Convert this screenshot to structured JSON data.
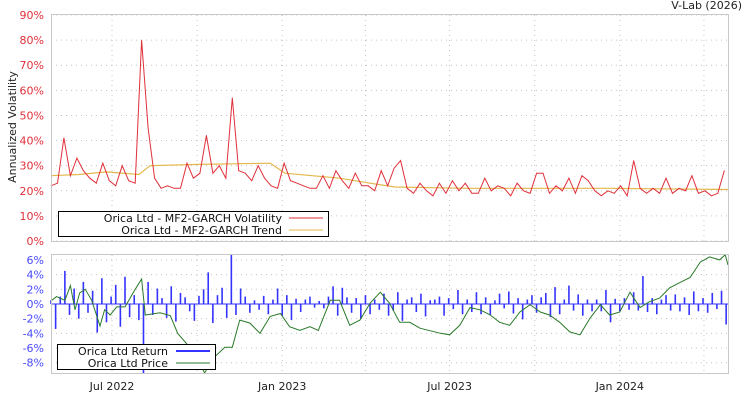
{
  "credit": "V-Lab (2026)",
  "chart_data": [
    {
      "type": "line",
      "ylabel": "Annualized Volatility",
      "ylim": [
        0,
        90
      ],
      "yticks": [
        "0%",
        "10%",
        "20%",
        "30%",
        "40%",
        "50%",
        "60%",
        "70%",
        "80%",
        "90%"
      ],
      "x_units": "days since 2022-04-26",
      "xlim": [
        0,
        732
      ],
      "grid": true,
      "legend_position": "bottom-left",
      "legend": [
        "Orica Ltd - MF2-GARCH Volatility",
        "Orica Ltd - MF2-GARCH Trend"
      ],
      "colors": {
        "volatility": "#e0303a",
        "trend": "#e3b84a"
      },
      "series": [
        {
          "name": "Orica Ltd - MF2-GARCH Volatility",
          "x_step": 7,
          "values": [
            22,
            23,
            41,
            26,
            33,
            28,
            25,
            23,
            31,
            24,
            22,
            30,
            24,
            23,
            80,
            45,
            25,
            21,
            22,
            21,
            21,
            31,
            25,
            27,
            42,
            27,
            30,
            25,
            57,
            28,
            27,
            24,
            30,
            25,
            22,
            21,
            31,
            24,
            23,
            22,
            21,
            21,
            26,
            21,
            28,
            24,
            21,
            27,
            22,
            22,
            20,
            28,
            22,
            29,
            32,
            21,
            19,
            23,
            20,
            18,
            23,
            19,
            24,
            20,
            23,
            19,
            19,
            25,
            20,
            22,
            21,
            18,
            23,
            20,
            19,
            27,
            27,
            19,
            22,
            20,
            25,
            19,
            26,
            24,
            20,
            18,
            20,
            19,
            22,
            18,
            32,
            21,
            19,
            21,
            19,
            25,
            19,
            21,
            20,
            26,
            19,
            20,
            18,
            19,
            28
          ]
        },
        {
          "name": "Orica Ltd - MF2-GARCH Trend",
          "points": [
            [
              0,
              26
            ],
            [
              30,
              26.5
            ],
            [
              60,
              27.5
            ],
            [
              95,
              26.5
            ],
            [
              107,
              30
            ],
            [
              160,
              30.5
            ],
            [
              237,
              31
            ],
            [
              253,
              27
            ],
            [
              312,
              25
            ],
            [
              345,
              23
            ],
            [
              372,
              21.5
            ],
            [
              450,
              21
            ],
            [
              600,
              21
            ],
            [
              732,
              20.5
            ]
          ]
        }
      ]
    },
    {
      "type": "line",
      "ylim": [
        -9.4,
        6.8
      ],
      "yticks": [
        "6%",
        "4%",
        "2%",
        "0%",
        "-2%",
        "-4%",
        "-6%",
        "-8%"
      ],
      "ytick_values": [
        6,
        4,
        2,
        0,
        -2,
        -4,
        -6,
        -8
      ],
      "xlim": [
        0,
        732
      ],
      "xticks": [
        {
          "day": 66,
          "label": "Jul 2022"
        },
        {
          "day": 250,
          "label": "Jan 2023"
        },
        {
          "day": 431,
          "label": "Jul 2023"
        },
        {
          "day": 615,
          "label": "Jan 2024"
        }
      ],
      "x_grid_days": [
        66,
        158,
        250,
        340,
        431,
        523,
        615,
        706
      ],
      "legend_position": "bottom-left",
      "legend": [
        "Orica Ltd Return",
        "Orica Ltd Price"
      ],
      "colors": {
        "return": "#3333ff",
        "price": "#2a7a2a"
      },
      "series": [
        {
          "name": "Orica Ltd Return",
          "x_step": 5,
          "values": [
            0.5,
            -3.4,
            1.0,
            4.5,
            -1.5,
            2.1,
            -2.0,
            3.0,
            -1.2,
            1.8,
            -3.9,
            3.5,
            -2.5,
            1.0,
            2.6,
            -3.1,
            3.7,
            -1.8,
            1.2,
            -2.2,
            -9.5,
            3.0,
            -1.5,
            2.1,
            0.8,
            -1.9,
            2.4,
            -2.4,
            1.5,
            0.9,
            -1.0,
            -2.3,
            1.1,
            2.0,
            4.3,
            -2.6,
            1.2,
            2.2,
            -1.9,
            6.8,
            -1.5,
            2.1,
            1.0,
            -1.2,
            0.5,
            -0.8,
            1.1,
            -1.4,
            0.6,
            2.1,
            -1.6,
            1.2,
            -2.2,
            0.7,
            -1.1,
            0.6,
            1.0,
            -0.5,
            0.4,
            -0.6,
            1.0,
            2.4,
            -1.6,
            2.2,
            0.9,
            -1.2,
            0.8,
            -2.0,
            1.2,
            -1.4,
            0.6,
            -0.8,
            1.4,
            -1.6,
            -0.9,
            1.6,
            -2.3,
            0.6,
            0.9,
            -1.1,
            1.4,
            -1.7,
            0.5,
            0.6,
            1.0,
            -1.6,
            0.8,
            -0.7,
            1.9,
            -1.4,
            0.6,
            -1.1,
            1.6,
            -1.4,
            0.9,
            -1.5,
            0.5,
            1.4,
            -0.6,
            1.7,
            -1.3,
            0.8,
            -2.1,
            0.6,
            1.2,
            -1.2,
            0.9,
            1.5,
            -1.8,
            2.3,
            -1.4,
            0.6,
            2.5,
            -0.9,
            1.3,
            -1.6,
            0.6,
            -1.0,
            0.6,
            -1.0,
            1.9,
            -2.5,
            0.7,
            -1.0,
            0.8,
            -0.8,
            1.6,
            -0.9,
            3.8,
            -1.1,
            0.8,
            -1.4,
            0.6,
            1.2,
            -0.9,
            1.3,
            -1.0,
            0.9,
            -1.5,
            1.7,
            -1.0,
            0.8,
            -1.2,
            1.5,
            -0.7,
            1.8,
            -2.8
          ]
        },
        {
          "name": "Orica Ltd Price",
          "points": [
            [
              1,
              0.5
            ],
            [
              6,
              1
            ],
            [
              15,
              0.5
            ],
            [
              21,
              2.5
            ],
            [
              26,
              -0.8
            ],
            [
              31,
              1.5
            ],
            [
              37,
              2
            ],
            [
              44,
              0.5
            ],
            [
              53,
              -3
            ],
            [
              58,
              -0.8
            ],
            [
              64,
              -1.5
            ],
            [
              71,
              -0.4
            ],
            [
              80,
              -0.4
            ],
            [
              91,
              2
            ],
            [
              98,
              3.4
            ],
            [
              102,
              -1.5
            ],
            [
              118,
              -1.2
            ],
            [
              129,
              -1.6
            ],
            [
              137,
              -4
            ],
            [
              150,
              -5.9
            ],
            [
              161,
              -8
            ],
            [
              166,
              -9.4
            ],
            [
              177,
              -7.2
            ],
            [
              188,
              -5.9
            ],
            [
              196,
              -5.9
            ],
            [
              204,
              -2.2
            ],
            [
              215,
              -2.6
            ],
            [
              226,
              -4
            ],
            [
              237,
              -1.7
            ],
            [
              248,
              -1.3
            ],
            [
              258,
              -3.1
            ],
            [
              269,
              -3.6
            ],
            [
              280,
              -3.1
            ],
            [
              289,
              -3.6
            ],
            [
              302,
              0.5
            ],
            [
              312,
              0.5
            ],
            [
              323,
              -2.9
            ],
            [
              334,
              -2.2
            ],
            [
              345,
              0.1
            ],
            [
              356,
              1.6
            ],
            [
              366,
              0.1
            ],
            [
              377,
              -2.5
            ],
            [
              388,
              -2.5
            ],
            [
              399,
              -3.3
            ],
            [
              421,
              -4
            ],
            [
              431,
              -4.2
            ],
            [
              442,
              -2.9
            ],
            [
              453,
              -0.5
            ],
            [
              464,
              -0.8
            ],
            [
              475,
              -1.5
            ],
            [
              485,
              -2.5
            ],
            [
              496,
              -2.9
            ],
            [
              507,
              -1.1
            ],
            [
              518,
              -0.1
            ],
            [
              529,
              -1.1
            ],
            [
              539,
              -1.5
            ],
            [
              550,
              -2.5
            ],
            [
              561,
              -3.8
            ],
            [
              572,
              -4.2
            ],
            [
              583,
              -1.9
            ],
            [
              594,
              -0.1
            ],
            [
              604,
              -1.5
            ],
            [
              615,
              -1.1
            ],
            [
              626,
              1.6
            ],
            [
              637,
              -0.5
            ],
            [
              647,
              0.3
            ],
            [
              658,
              0.8
            ],
            [
              669,
              2.2
            ],
            [
              680,
              2.9
            ],
            [
              691,
              3.6
            ],
            [
              702,
              5.7
            ],
            [
              712,
              6.4
            ],
            [
              723,
              6
            ],
            [
              729,
              6.7
            ],
            [
              732,
              5.3
            ]
          ]
        }
      ]
    }
  ]
}
